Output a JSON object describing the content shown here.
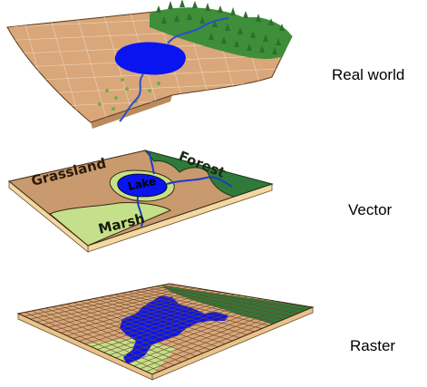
{
  "panels": {
    "real_world": {
      "label": "Real world"
    },
    "vector": {
      "label": "Vector",
      "regions": {
        "grassland": "Grassland",
        "forest": "Forest",
        "lake": "Lake",
        "marsh": "Marsh"
      }
    },
    "raster": {
      "label": "Raster"
    }
  },
  "colors": {
    "terrain": "#d9a77a",
    "terrain_side": "#f2d9a4",
    "water": "#0a14f0",
    "river": "#2a4fc9",
    "forest": "#2f7a3a",
    "forest_tree": "#3e9a3a",
    "marsh": "#c4e08a",
    "vector_ground": "#c89a6e",
    "raster_grid": "#6b4a2a"
  }
}
